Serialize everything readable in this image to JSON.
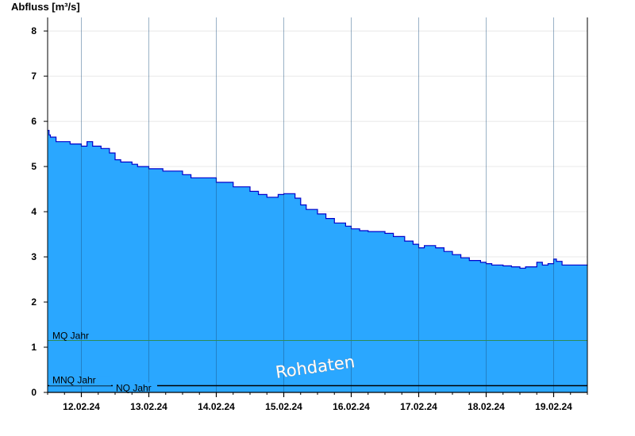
{
  "chart_data": {
    "type": "area",
    "title": "",
    "ylabel": "Abfluss [m³/s]",
    "xlabel": "",
    "ylim": [
      0,
      8.3
    ],
    "yticks": [
      0,
      1,
      2,
      3,
      4,
      5,
      6,
      7,
      8
    ],
    "x_start": "2024-02-11 12:00",
    "x_end": "2024-02-19 12:00",
    "categories": [
      "12.02.24",
      "13.02.24",
      "14.02.24",
      "15.02.24",
      "16.02.24",
      "17.02.24",
      "18.02.24",
      "19.02.24"
    ],
    "fill_color": "#2aa7ff",
    "line_color": "#0000cc",
    "series": [
      {
        "name": "",
        "x": [
          "2024-02-11 12:00",
          "2024-02-11 12:30",
          "2024-02-11 13:00",
          "2024-02-11 15:00",
          "2024-02-11 20:00",
          "2024-02-12 00:00",
          "2024-02-12 02:00",
          "2024-02-12 04:00",
          "2024-02-12 07:00",
          "2024-02-12 10:00",
          "2024-02-12 12:00",
          "2024-02-12 14:00",
          "2024-02-12 18:00",
          "2024-02-12 20:00",
          "2024-02-13 00:00",
          "2024-02-13 05:00",
          "2024-02-13 12:00",
          "2024-02-13 15:00",
          "2024-02-14 00:00",
          "2024-02-14 06:00",
          "2024-02-14 12:00",
          "2024-02-14 15:00",
          "2024-02-14 18:00",
          "2024-02-14 22:00",
          "2024-02-15 00:00",
          "2024-02-15 04:00",
          "2024-02-15 06:00",
          "2024-02-15 08:00",
          "2024-02-15 12:00",
          "2024-02-15 15:00",
          "2024-02-15 18:00",
          "2024-02-15 22:00",
          "2024-02-16 00:00",
          "2024-02-16 03:00",
          "2024-02-16 06:00",
          "2024-02-16 12:00",
          "2024-02-16 15:00",
          "2024-02-16 19:00",
          "2024-02-16 22:00",
          "2024-02-17 00:00",
          "2024-02-17 02:00",
          "2024-02-17 06:00",
          "2024-02-17 09:00",
          "2024-02-17 12:00",
          "2024-02-17 15:00",
          "2024-02-17 18:00",
          "2024-02-17 22:00",
          "2024-02-18 00:00",
          "2024-02-18 02:00",
          "2024-02-18 06:00",
          "2024-02-18 09:00",
          "2024-02-18 12:00",
          "2024-02-18 14:00",
          "2024-02-18 18:00",
          "2024-02-18 20:00",
          "2024-02-18 22:00",
          "2024-02-19 00:00",
          "2024-02-19 01:00",
          "2024-02-19 03:00",
          "2024-02-19 12:00"
        ],
        "values": [
          5.8,
          5.7,
          5.65,
          5.55,
          5.5,
          5.45,
          5.55,
          5.45,
          5.4,
          5.3,
          5.15,
          5.1,
          5.05,
          5.0,
          4.95,
          4.9,
          4.82,
          4.75,
          4.65,
          4.55,
          4.45,
          4.38,
          4.32,
          4.38,
          4.4,
          4.3,
          4.15,
          4.05,
          3.95,
          3.85,
          3.75,
          3.68,
          3.62,
          3.58,
          3.56,
          3.52,
          3.45,
          3.35,
          3.28,
          3.2,
          3.25,
          3.2,
          3.12,
          3.05,
          2.98,
          2.92,
          2.88,
          2.85,
          2.82,
          2.8,
          2.78,
          2.75,
          2.78,
          2.88,
          2.82,
          2.85,
          2.95,
          2.9,
          2.82,
          2.8
        ]
      }
    ],
    "reference_lines": [
      {
        "name": "MQ Jahr",
        "value": 1.15,
        "color": "#2e8b57"
      },
      {
        "name": "MNQ Jahr",
        "value": 0.15,
        "color": "#000000"
      },
      {
        "name": "NQ Jahr",
        "value": 0.15,
        "color": "#000000"
      }
    ],
    "annotation": "Rohdaten",
    "grid": true
  }
}
